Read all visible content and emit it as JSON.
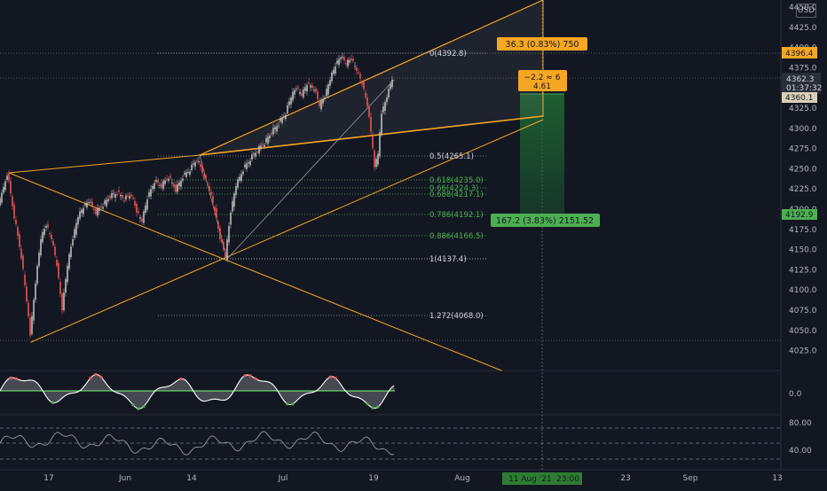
{
  "currency": "USD",
  "price_axis": {
    "ticks": [
      "4450.0",
      "4425.0",
      "4400.0",
      "4375.0",
      "4350.0",
      "4325.0",
      "4300.0",
      "4275.0",
      "4250.0",
      "4225.0",
      "4200.0",
      "4175.0",
      "4150.0",
      "4125.0",
      "4100.0",
      "4075.0",
      "4050.0",
      "4025.0"
    ],
    "badges": {
      "top_level": "4396.4",
      "last_price": "4362.3",
      "countdown": "01:37:32",
      "stop_level": "4360.1",
      "target_level": "4192.9"
    }
  },
  "oscillator_axis": {
    "ticks": [
      "0.0"
    ]
  },
  "rsi_axis": {
    "ticks": [
      "80.00",
      "40.00"
    ]
  },
  "time_axis": {
    "ticks": [
      "17",
      "Jun",
      "14",
      "Jul",
      "19",
      "Aug",
      "23",
      "Sep",
      "13"
    ],
    "cursor_label": "11 Aug '21",
    "cursor_time": "23:00"
  },
  "fib_levels": [
    "0(4392.8)",
    "0.5(4265.1)",
    "0.618(4235.0)",
    "0.66(4224.3)",
    "0.688(4217.1)",
    "0.786(4192.1)",
    "0.886(4166.5)",
    "1(4137.4)",
    "1.272(4068.0)"
  ],
  "measure_labels": {
    "upper": "36.3 (0.83%) 750",
    "mid_line1": "−2.2 ≈ 6",
    "mid_line2": "4.61",
    "lower": "167.2 (3.83%) 2151.52"
  },
  "colors": {
    "background": "#131722",
    "up_candle": "#bdbdbd",
    "down_candle": "#ef5350",
    "orange": "#f5a623",
    "green": "#4caf50",
    "grid": "#2a2e39"
  }
}
